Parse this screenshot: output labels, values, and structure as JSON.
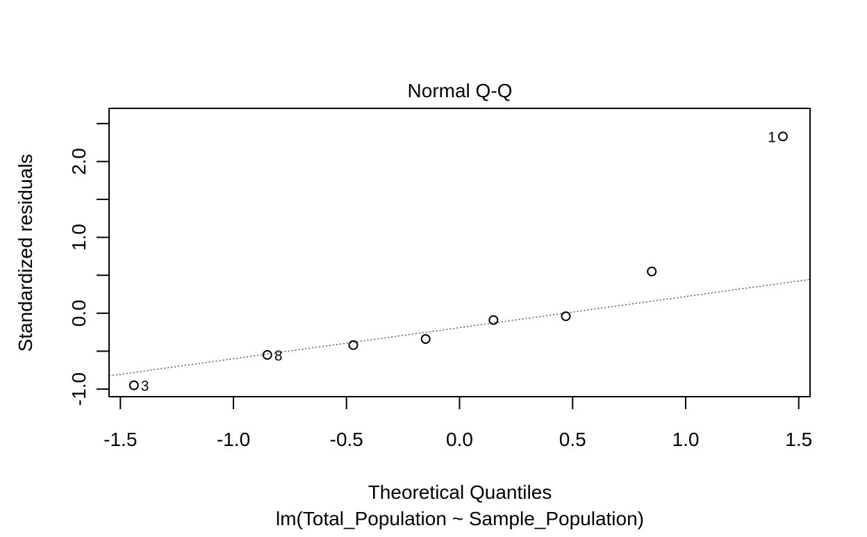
{
  "chart_data": {
    "type": "scatter",
    "title": "Normal Q-Q",
    "xlabel": "Theoretical Quantiles",
    "subtitle": "lm(Total_Population ~ Sample_Population)",
    "ylabel": "Standardized residuals",
    "xlim": [
      -1.55,
      1.55
    ],
    "ylim": [
      -1.1,
      2.7
    ],
    "x_ticks": [
      -1.5,
      -1.0,
      -0.5,
      0.0,
      0.5,
      1.0,
      1.5
    ],
    "x_tick_labels": [
      "-1.5",
      "-1.0",
      "-0.5",
      "0.0",
      "0.5",
      "1.0",
      "1.5"
    ],
    "y_ticks": [
      -1.0,
      -0.5,
      0.0,
      0.5,
      1.0,
      1.5,
      2.0,
      2.5
    ],
    "y_tick_labels": [
      "-1.0",
      "",
      "0.0",
      "",
      "1.0",
      "",
      "2.0",
      ""
    ],
    "grid": false,
    "points": [
      {
        "x": -1.44,
        "y": -0.95,
        "label": "3",
        "label_side": "right"
      },
      {
        "x": -0.85,
        "y": -0.55,
        "label": "8",
        "label_side": "right"
      },
      {
        "x": -0.47,
        "y": -0.42,
        "label": ""
      },
      {
        "x": -0.15,
        "y": -0.34,
        "label": ""
      },
      {
        "x": 0.15,
        "y": -0.09,
        "label": ""
      },
      {
        "x": 0.47,
        "y": -0.04,
        "label": ""
      },
      {
        "x": 0.85,
        "y": 0.55,
        "label": ""
      },
      {
        "x": 1.43,
        "y": 2.33,
        "label": "1",
        "label_side": "left"
      }
    ],
    "reference_line": {
      "style": "dotted",
      "color": "#555555",
      "intercept": -0.19,
      "slope": 0.41
    }
  }
}
